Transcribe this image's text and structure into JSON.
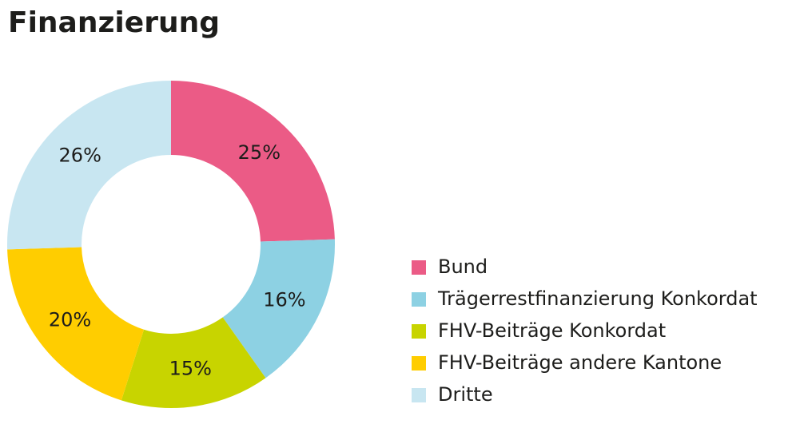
{
  "chart_data": {
    "type": "donut",
    "title": "Finanzierung",
    "categories": [
      "Bund",
      "Trägerrestfinanzierung Konkordat",
      "FHV-Beiträge Konkordat",
      "FHV-Beiträge andere Kantone",
      "Dritte"
    ],
    "values": [
      25,
      16,
      15,
      20,
      26
    ],
    "value_labels": [
      "25%",
      "16%",
      "15%",
      "20%",
      "26%"
    ],
    "colors": [
      "#eb5b86",
      "#8dd1e3",
      "#c8d400",
      "#ffcd00",
      "#c8e6f1"
    ],
    "legend": "right"
  }
}
